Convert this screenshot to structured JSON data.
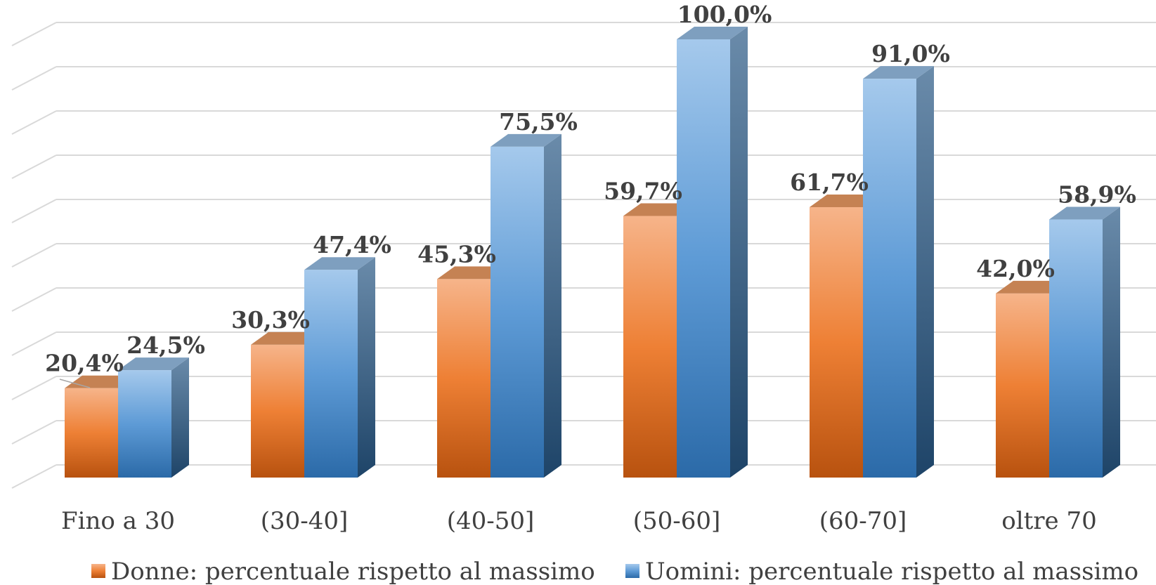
{
  "chart_data": {
    "type": "bar",
    "categories": [
      "Fino a 30",
      "(30-40]",
      "(40-50]",
      "(50-60]",
      "(60-70]",
      "oltre 70"
    ],
    "series": [
      {
        "name": "Donne: percentuale rispetto al massimo",
        "values": [
          20.4,
          30.3,
          45.3,
          59.7,
          61.7,
          42.0
        ],
        "labels": [
          "20,4%",
          "30,3%",
          "45,3%",
          "59,7%",
          "61,7%",
          "42,0%"
        ],
        "color": "#ED7D31"
      },
      {
        "name": "Uomini: percentuale rispetto al massimo",
        "values": [
          24.5,
          47.4,
          75.5,
          100.0,
          91.0,
          58.9
        ],
        "labels": [
          "24,5%",
          "47,4%",
          "75,5%",
          "100,0%",
          "91,0%",
          "58,9%"
        ],
        "color": "#5B9BD5"
      }
    ],
    "ylim": [
      0,
      110
    ],
    "grid": true,
    "legend_position": "bottom",
    "style": "3d-clustered-column"
  }
}
